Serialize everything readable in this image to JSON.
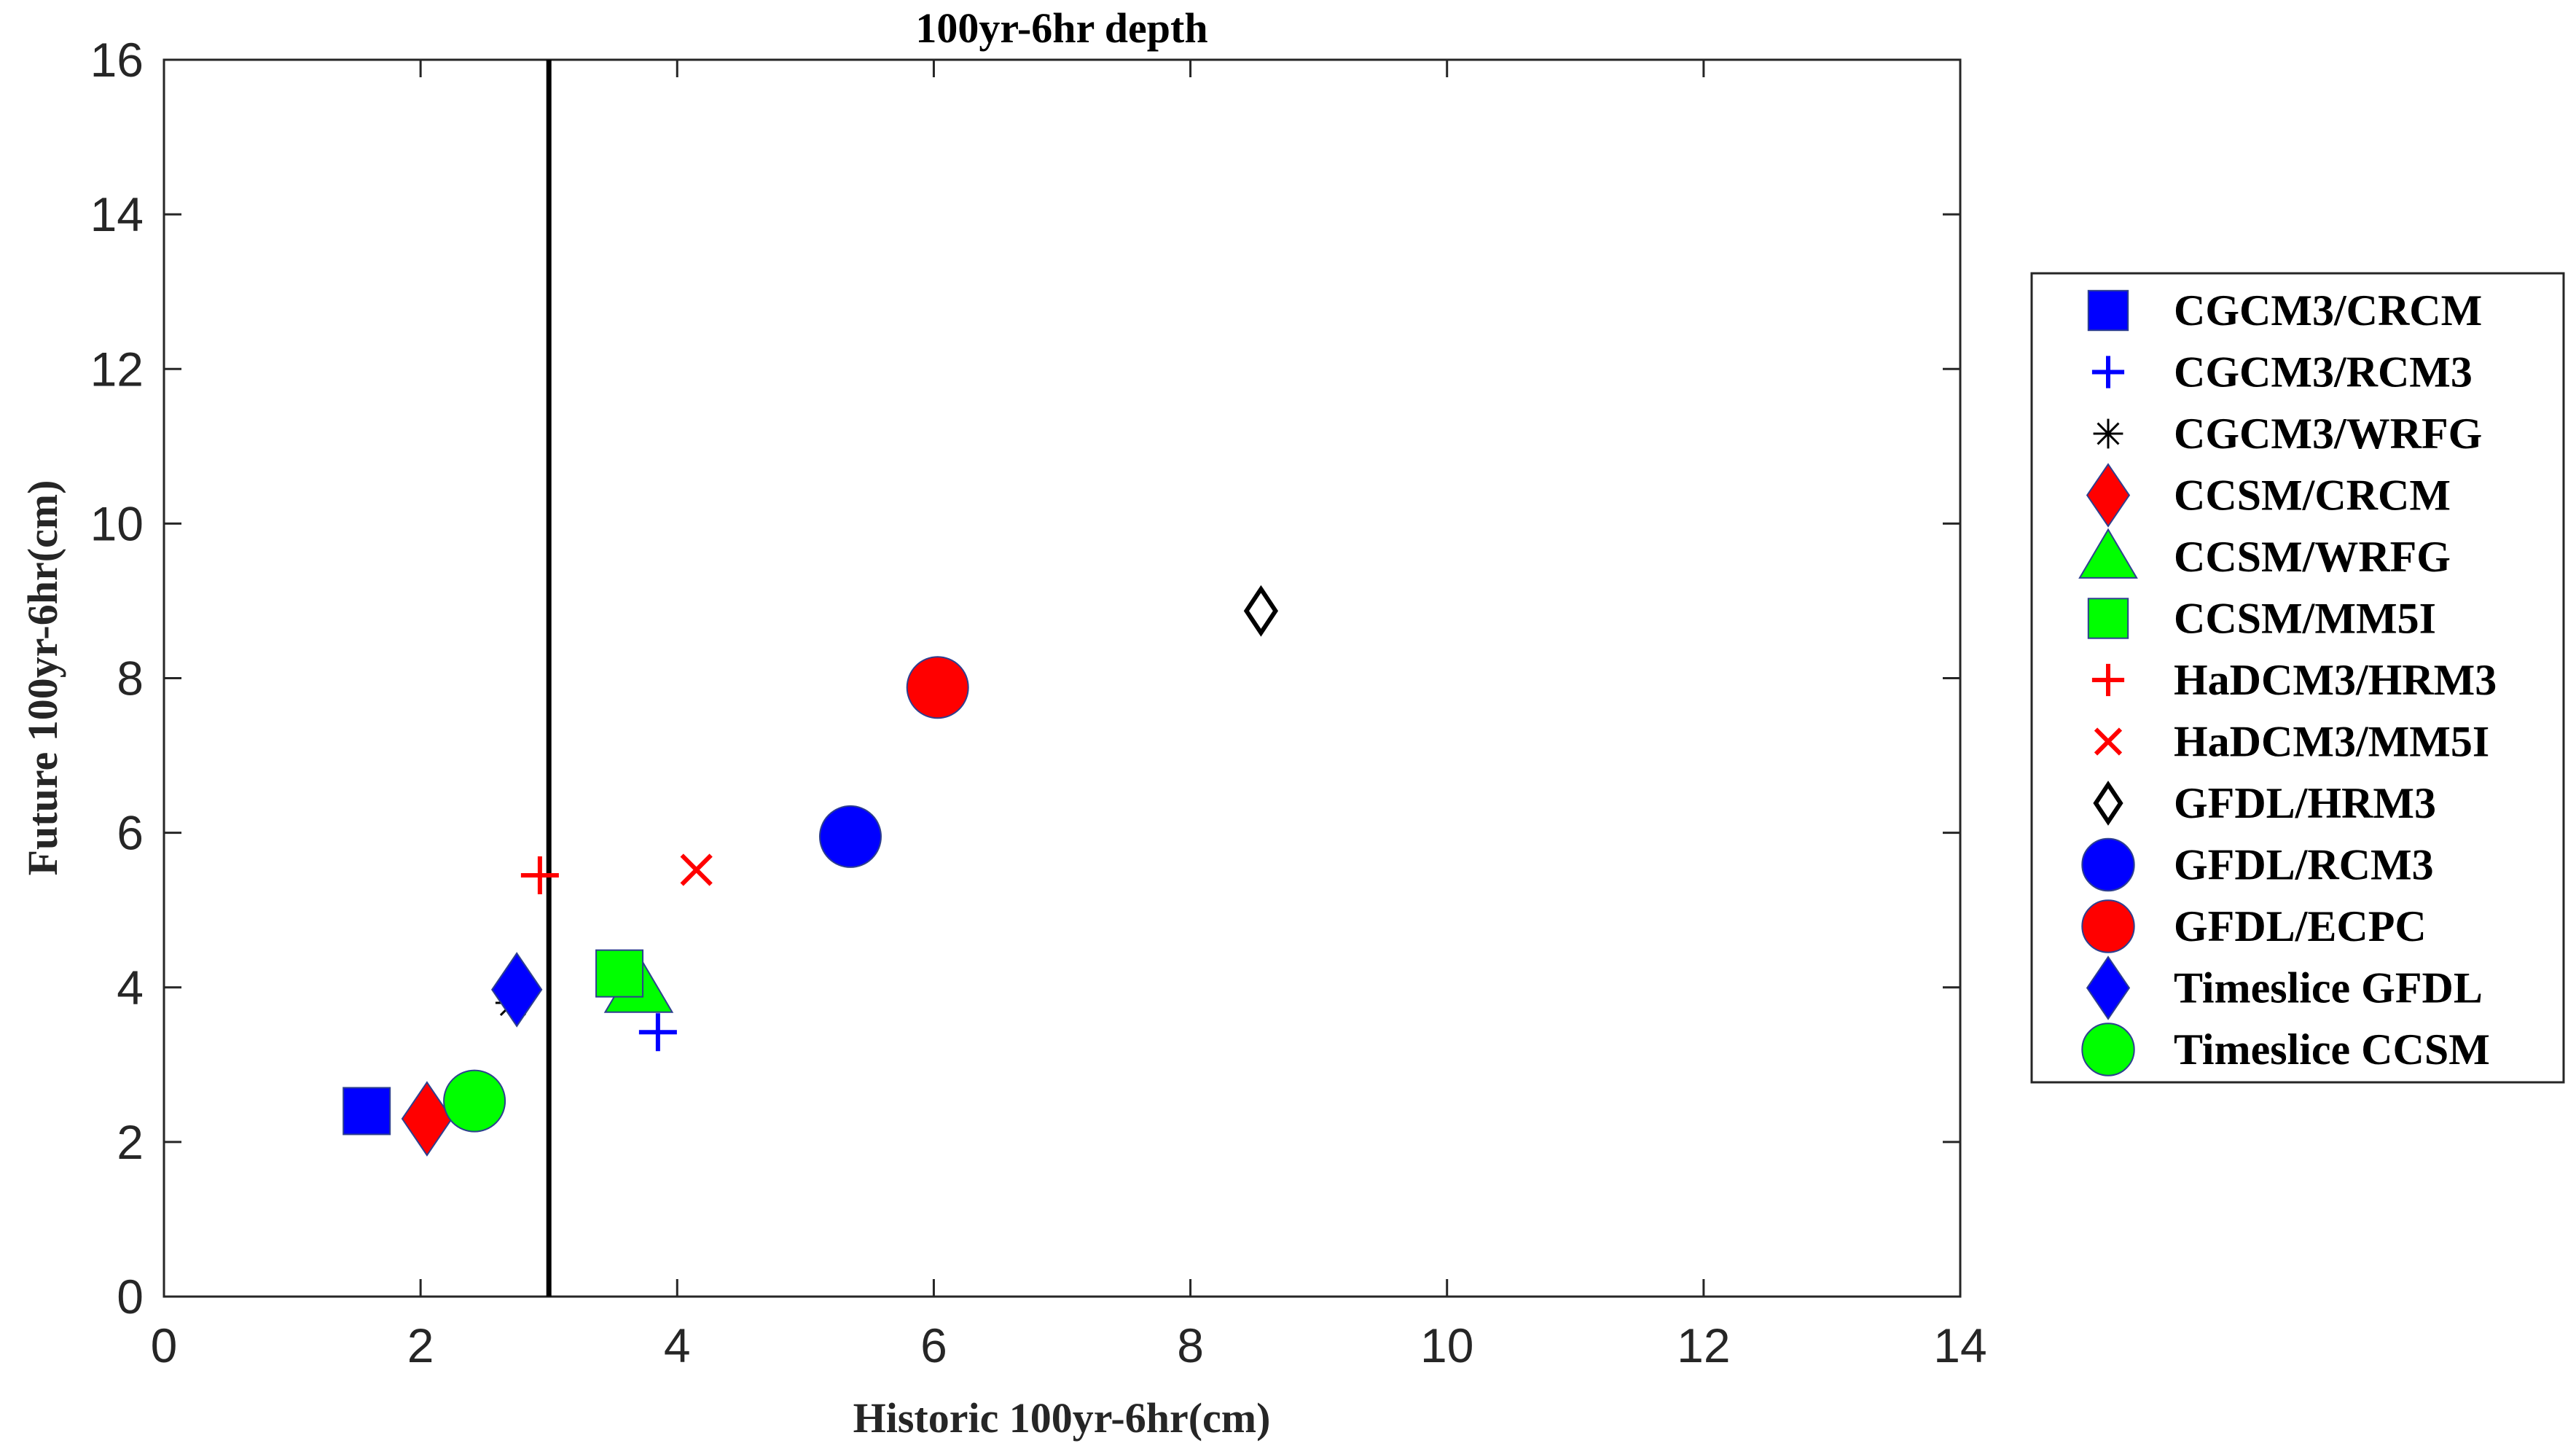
{
  "chart_data": {
    "type": "scatter",
    "title": "100yr-6hr depth",
    "xlabel": "Historic 100yr-6hr(cm)",
    "ylabel": "Future 100yr-6hr(cm)",
    "xlim": [
      0,
      14
    ],
    "ylim": [
      0,
      16
    ],
    "xticks": [
      "0",
      "2",
      "4",
      "6",
      "8",
      "10",
      "12",
      "14"
    ],
    "yticks": [
      "0",
      "2",
      "4",
      "6",
      "8",
      "10",
      "12",
      "14",
      "16"
    ],
    "grid": false,
    "legend_position": "outside-right",
    "reference_line": {
      "x": 3,
      "color": "#000000"
    },
    "series": [
      {
        "name": "CGCM3/CRCM",
        "marker": "square-filled",
        "color": "#0000ff",
        "x": 1.58,
        "y": 2.4
      },
      {
        "name": "CGCM3/RCM3",
        "marker": "plus",
        "color": "#0000ff",
        "x": 3.85,
        "y": 3.42
      },
      {
        "name": "CGCM3/WRFG",
        "marker": "asterisk",
        "color": "#000000",
        "x": 2.72,
        "y": 3.8
      },
      {
        "name": "CCSM/CRCM",
        "marker": "diamond-filled",
        "color": "#ff0000",
        "x": 2.05,
        "y": 2.3
      },
      {
        "name": "CCSM/WRFG",
        "marker": "triangle-filled",
        "color": "#00ff00",
        "x": 3.7,
        "y": 4.0
      },
      {
        "name": "CCSM/MM5I",
        "marker": "square-filled",
        "color": "#00ff00",
        "x": 3.55,
        "y": 4.18
      },
      {
        "name": "HaDCM3/HRM3",
        "marker": "plus",
        "color": "#ff0000",
        "x": 2.93,
        "y": 5.45
      },
      {
        "name": "HaDCM3/MM5I",
        "marker": "x",
        "color": "#ff0000",
        "x": 4.15,
        "y": 5.52
      },
      {
        "name": "GFDL/HRM3",
        "marker": "diamond-open",
        "color": "#000000",
        "x": 8.55,
        "y": 8.87
      },
      {
        "name": "GFDL/RCM3",
        "marker": "circle-filled",
        "color": "#0000ff",
        "x": 5.35,
        "y": 5.95
      },
      {
        "name": "GFDL/ECPC",
        "marker": "circle-filled",
        "color": "#ff0000",
        "x": 6.03,
        "y": 7.88
      },
      {
        "name": "Timeslice GFDL",
        "marker": "diamond-filled",
        "color": "#0000ff",
        "x": 2.75,
        "y": 3.97
      },
      {
        "name": "Timeslice CCSM",
        "marker": "circle-filled",
        "color": "#00ff00",
        "x": 2.42,
        "y": 2.53
      }
    ]
  }
}
